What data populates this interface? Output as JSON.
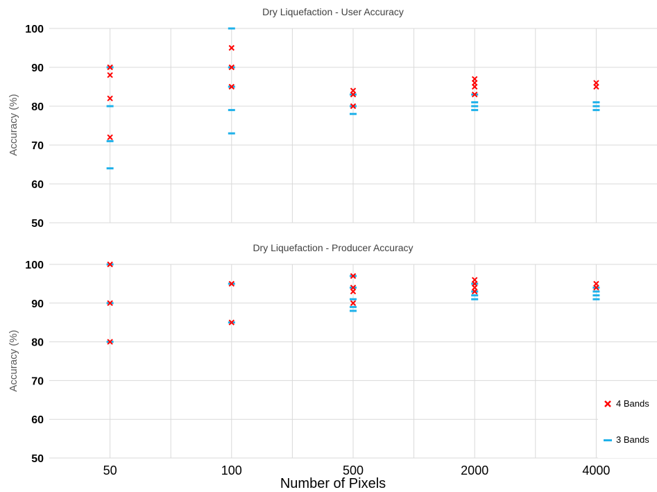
{
  "chart_data": [
    {
      "type": "scatter",
      "title": "Dry Liquefaction - User Accuracy",
      "ylabel": "Accuracy (%)",
      "xlabel": "",
      "categories": [
        "50",
        "100",
        "500",
        "2000",
        "4000"
      ],
      "ylim": [
        50,
        100
      ],
      "yticks": [
        50,
        60,
        70,
        80,
        90,
        100
      ],
      "grid": true,
      "series": [
        {
          "name": "4 Bands",
          "marker": "x",
          "color": "#ff0000",
          "points": [
            {
              "category": "50",
              "values": [
                90,
                88,
                82,
                72
              ]
            },
            {
              "category": "100",
              "values": [
                95,
                90,
                85
              ]
            },
            {
              "category": "500",
              "values": [
                84,
                83,
                80
              ]
            },
            {
              "category": "2000",
              "values": [
                87,
                86,
                85,
                83
              ]
            },
            {
              "category": "4000",
              "values": [
                86,
                85
              ]
            }
          ]
        },
        {
          "name": "3 Bands",
          "marker": "dash",
          "color": "#1fb1ea",
          "points": [
            {
              "category": "50",
              "values": [
                90,
                80,
                71,
                64
              ]
            },
            {
              "category": "100",
              "values": [
                100,
                90,
                85,
                79,
                73
              ]
            },
            {
              "category": "500",
              "values": [
                83,
                80,
                78
              ]
            },
            {
              "category": "2000",
              "values": [
                83,
                81,
                80,
                79
              ]
            },
            {
              "category": "4000",
              "values": [
                81,
                80,
                79
              ]
            }
          ]
        }
      ]
    },
    {
      "type": "scatter",
      "title": "Dry Liquefaction - Producer Accuracy",
      "ylabel": "Accuracy (%)",
      "xlabel": "Number of Pixels",
      "categories": [
        "50",
        "100",
        "500",
        "2000",
        "4000"
      ],
      "ylim": [
        50,
        100
      ],
      "yticks": [
        50,
        60,
        70,
        80,
        90,
        100
      ],
      "grid": true,
      "legend_position": "bottom-right",
      "series": [
        {
          "name": "4 Bands",
          "marker": "x",
          "color": "#ff0000",
          "points": [
            {
              "category": "50",
              "values": [
                100,
                90,
                80
              ]
            },
            {
              "category": "100",
              "values": [
                95,
                85
              ]
            },
            {
              "category": "500",
              "values": [
                97,
                94,
                93,
                90
              ]
            },
            {
              "category": "2000",
              "values": [
                96,
                95,
                94,
                93
              ]
            },
            {
              "category": "4000",
              "values": [
                95,
                94
              ]
            }
          ]
        },
        {
          "name": "3 Bands",
          "marker": "dash",
          "color": "#1fb1ea",
          "points": [
            {
              "category": "50",
              "values": [
                100,
                90,
                80
              ]
            },
            {
              "category": "100",
              "values": [
                95,
                85
              ]
            },
            {
              "category": "500",
              "values": [
                97,
                94,
                91,
                89,
                88
              ]
            },
            {
              "category": "2000",
              "values": [
                95,
                93,
                92,
                91
              ]
            },
            {
              "category": "4000",
              "values": [
                94,
                93,
                92,
                91
              ]
            }
          ]
        }
      ]
    }
  ],
  "legend": {
    "items": [
      {
        "label": "4 Bands",
        "marker": "x",
        "color": "#ff0000"
      },
      {
        "label": "3 Bands",
        "marker": "dash",
        "color": "#1fb1ea"
      }
    ]
  }
}
